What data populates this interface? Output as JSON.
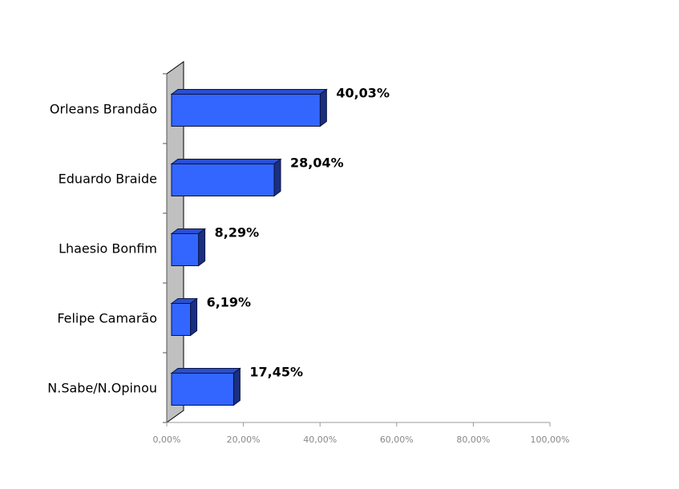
{
  "chart_data": {
    "type": "bar",
    "orientation": "horizontal",
    "style": "3d",
    "categories": [
      "Orleans Brandão",
      "Eduardo Braide",
      "Lhaesio Bonfim",
      "Felipe Camarão",
      "N.Sabe/N.Opinou"
    ],
    "values": [
      40.03,
      28.04,
      8.29,
      6.19,
      17.45
    ],
    "value_labels": [
      "40,03%",
      "28,04%",
      "8,29%",
      "6,19%",
      "17,45%"
    ],
    "xlim": [
      0,
      100
    ],
    "x_ticks": [
      "0,00%",
      "20,00%",
      "40,00%",
      "60,00%",
      "80,00%",
      "100,00%"
    ],
    "grid": false,
    "legend": "none",
    "colors": {
      "bar_front": "#3366ff",
      "bar_top": "#2a4fd0",
      "bar_side": "#1a2f80",
      "bar_outline": "#0a1440",
      "back_wall": "#c0c0c0",
      "axis": "#555555"
    }
  }
}
